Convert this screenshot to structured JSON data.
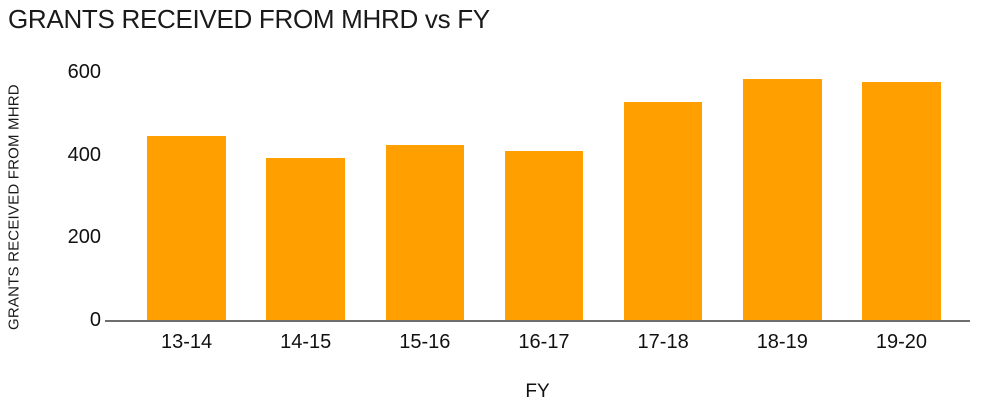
{
  "chart_data": {
    "type": "bar",
    "title": "GRANTS RECEIVED FROM MHRD vs FY",
    "categories": [
      "13-14",
      "14-15",
      "15-16",
      "16-17",
      "17-18",
      "18-19",
      "19-20"
    ],
    "values": [
      445,
      393,
      424,
      409,
      527,
      585,
      577
    ],
    "xlabel": "FY",
    "ylabel": "GRANTS RECEIVED FROM MHRD",
    "ylim": [
      0,
      642
    ],
    "yticks": [
      0,
      200,
      400,
      600
    ],
    "grid": false,
    "legend_position": "none",
    "bar_color": "#FFA000",
    "axis_color": "#6E6E6E",
    "text_color": "#1A1A1A"
  }
}
